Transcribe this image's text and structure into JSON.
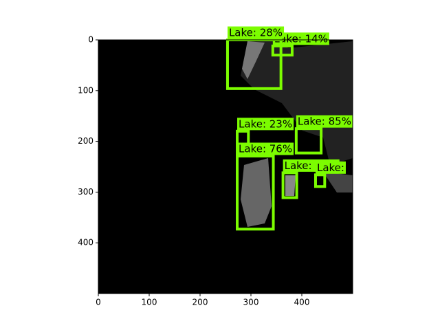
{
  "chart_data": {
    "type": "image",
    "xlim": [
      0,
      500
    ],
    "ylim": [
      500,
      0
    ],
    "xticks": [
      0,
      100,
      200,
      300,
      400
    ],
    "yticks": [
      0,
      100,
      200,
      300,
      400
    ],
    "box_color": "#7cfc00",
    "boxes": [
      {
        "label": "Lake: 14%",
        "x0": 343,
        "y0": 12,
        "x1": 381,
        "y1": 30
      },
      {
        "label": "Lake: 28%",
        "x0": 254,
        "y0": 0,
        "x1": 359,
        "y1": 96
      },
      {
        "label": "Lake: 23%",
        "x0": 273,
        "y0": 180,
        "x1": 295,
        "y1": 227
      },
      {
        "label": "Lake: 85%",
        "x0": 389,
        "y0": 175,
        "x1": 438,
        "y1": 223
      },
      {
        "label": "Lake: 76%",
        "x0": 273,
        "y0": 229,
        "x1": 344,
        "y1": 373
      },
      {
        "label": "Lake: 13%",
        "x0": 363,
        "y0": 262,
        "x1": 390,
        "y1": 311
      },
      {
        "label": "Lake:",
        "x0": 427,
        "y0": 266,
        "x1": 445,
        "y1": 289
      }
    ]
  }
}
